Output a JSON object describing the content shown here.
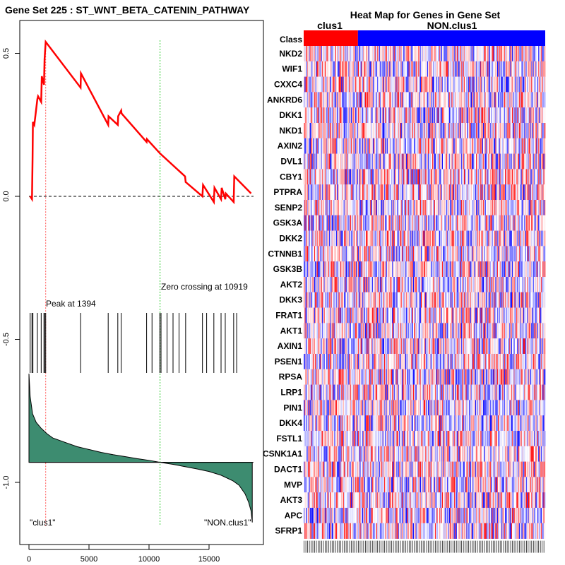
{
  "chart_data": [
    {
      "type": "line",
      "title": "Gene Set  225 : ST_WNT_BETA_CATENIN_PATHWAY",
      "xlabel": "",
      "ylabel": "",
      "xlim": [
        0,
        18700
      ],
      "ylim": [
        -1.2,
        0.6
      ],
      "x_ticks": [
        0,
        5000,
        10000,
        15000
      ],
      "y_ticks": [
        0.5,
        0.0,
        -0.5,
        -1.0
      ],
      "tick_labels_x": [
        "0",
        "5000",
        "10000",
        "15000"
      ],
      "tick_labels_y": [
        "0.5",
        "0.0",
        "-0.5",
        "-1.0"
      ],
      "peak_label": "Peak at 1394",
      "zero_crossing_label": "Zero crossing at 10919",
      "peak_x": 1394,
      "zero_crossing_x": 10919,
      "left_class_label": "\"clus1\"",
      "right_class_label": "\"NON.clus1\"",
      "series": [
        {
          "name": "Running enrichment score",
          "color": "#ff0000",
          "x": [
            100,
            250,
            300,
            330,
            450,
            700,
            760,
            1020,
            1070,
            1250,
            1300,
            1394,
            4300,
            4330,
            6600,
            6630,
            7400,
            7430,
            7680,
            7710,
            9800,
            9830,
            10919,
            13000,
            13050,
            14450,
            14500,
            15400,
            15450,
            16000,
            16050,
            16350,
            16400,
            17050,
            17100,
            18500
          ],
          "y": [
            0.0,
            -0.01,
            0.13,
            0.26,
            0.25,
            0.34,
            0.35,
            0.33,
            0.42,
            0.39,
            0.48,
            0.54,
            0.38,
            0.43,
            0.25,
            0.28,
            0.25,
            0.28,
            0.3,
            0.29,
            0.19,
            0.2,
            0.15,
            0.07,
            0.05,
            0.0,
            0.04,
            -0.02,
            0.03,
            -0.01,
            0.03,
            -0.01,
            0.01,
            -0.02,
            0.07,
            0.01
          ]
        }
      ],
      "hit_positions": [
        100,
        250,
        330,
        700,
        1020,
        1250,
        1300,
        1394,
        4300,
        6600,
        7400,
        7680,
        9800,
        10250,
        10900,
        11000,
        11500,
        12000,
        12500,
        13050,
        14450,
        14800,
        15400,
        16000,
        16350,
        17050,
        17300
      ],
      "ranked_metric": {
        "name": "Ranked list metric",
        "color": "#3d8c70",
        "x": [
          0,
          100,
          300,
          600,
          1000,
          1500,
          2000,
          3000,
          4000,
          5000,
          6000,
          7000,
          8000,
          9000,
          10000,
          10919,
          12000,
          13000,
          14000,
          15000,
          16000,
          17000,
          17500,
          18000,
          18300,
          18500,
          18600
        ],
        "y": [
          -0.62,
          -0.7,
          -0.76,
          -0.79,
          -0.81,
          -0.83,
          -0.845,
          -0.86,
          -0.875,
          -0.885,
          -0.895,
          -0.903,
          -0.91,
          -0.917,
          -0.923,
          -0.93,
          -0.937,
          -0.945,
          -0.953,
          -0.962,
          -0.975,
          -0.995,
          -1.01,
          -1.04,
          -1.07,
          -1.1,
          -1.14
        ],
        "baseline": -0.93
      }
    },
    {
      "type": "heatmap",
      "title": "Heat Map for Genes in Gene Set",
      "row_header": "Class",
      "classes": [
        {
          "name": "clus1",
          "color": "#ff0000",
          "columns": 62
        },
        {
          "name": "NON.clus1",
          "color": "#0000ff",
          "columns": 214
        }
      ],
      "genes": [
        "NKD2",
        "WIF1",
        "CXXC4",
        "ANKRD6",
        "DKK1",
        "NKD1",
        "AXIN2",
        "DVL1",
        "CBY1",
        "PTPRA",
        "SENP2",
        "GSK3A",
        "DKK2",
        "CTNNB1",
        "GSK3B",
        "AKT2",
        "DKK3",
        "FRAT1",
        "AKT1",
        "AXIN1",
        "PSEN1",
        "RPSA",
        "LRP1",
        "PIN1",
        "DKK4",
        "FSTL1",
        "CSNK1A1",
        "DACT1",
        "MVP",
        "AKT3",
        "APC",
        "SFRP1"
      ],
      "color_scale": {
        "low": "#0000ff",
        "mid": "#ffffff",
        "high": "#ff0000"
      }
    }
  ]
}
